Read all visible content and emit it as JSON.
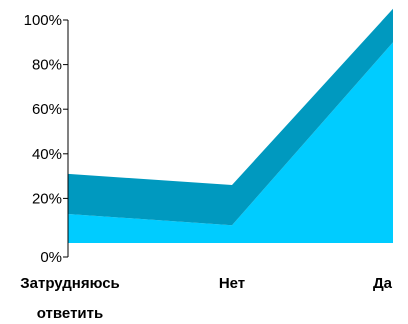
{
  "chart_data": {
    "type": "area",
    "stacked": true,
    "categories": [
      "Затрудняюсь ответить",
      "Нет",
      "Да"
    ],
    "category_label_lines": [
      [
        "Затрудняюсь",
        "ответить"
      ],
      [
        "Нет"
      ],
      [
        "Да"
      ]
    ],
    "y_ticks": [
      "0%",
      "20%",
      "40%",
      "60%",
      "80%",
      "100%"
    ],
    "ylim": [
      0,
      100
    ],
    "grid": false,
    "series": [
      {
        "values": [
          13,
          8,
          90
        ],
        "color": "#00ccff"
      },
      {
        "values": [
          18,
          18,
          15
        ],
        "color": "#0099bf"
      }
    ]
  }
}
